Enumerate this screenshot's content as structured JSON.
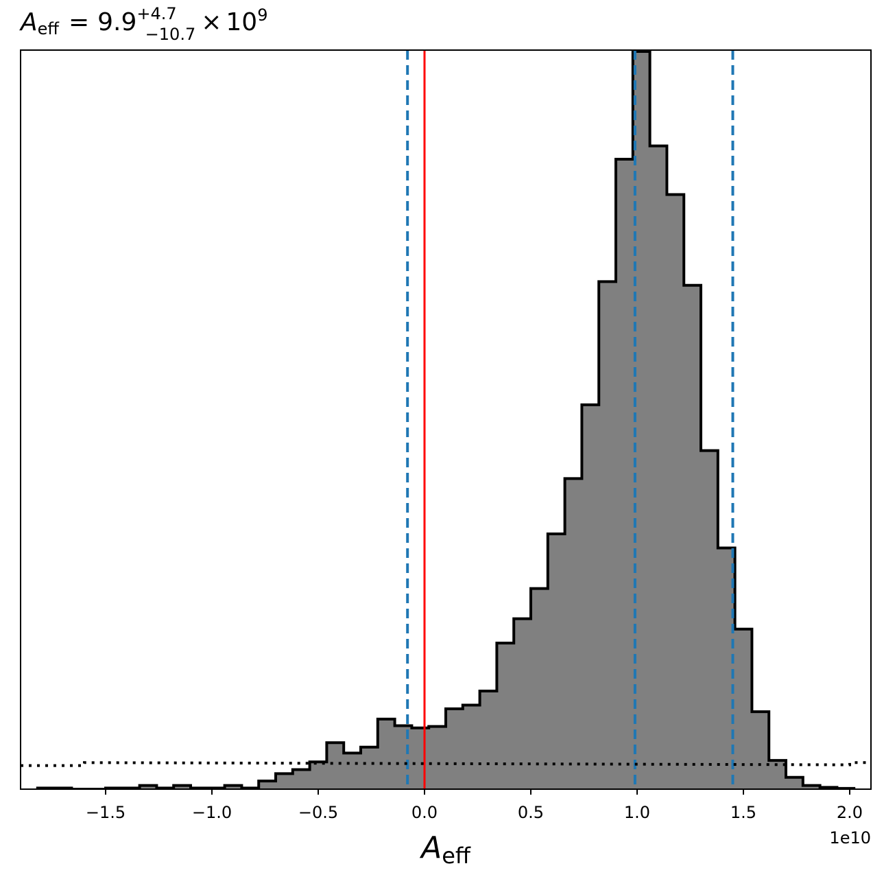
{
  "chart_data": {
    "type": "histogram",
    "title": {
      "symbol": "A",
      "symbol_subscript": "eff",
      "equals": "=",
      "value": "9.9",
      "upper": "+4.7",
      "lower": "−10.7",
      "times": "×",
      "base": "10",
      "exponent": "9"
    },
    "xlabel": {
      "symbol": "A",
      "subscript": "eff"
    },
    "offset_label": "1e10",
    "xlim": [
      -19000000000.0,
      21000000000.0
    ],
    "ylim": [
      0,
      1.0
    ],
    "xticks": [
      -15000000000.0,
      -10000000000.0,
      -5000000000.0,
      0.0,
      5000000000.0,
      10000000000.0,
      15000000000.0,
      20000000000.0
    ],
    "xtick_labels": [
      "−1.5",
      "−1.0",
      "−0.5",
      "0.0",
      "0.5",
      "1.0",
      "1.5",
      "2.0"
    ],
    "yticks_visible": false,
    "bin_edges": [
      -18200000000.0,
      -17400000000.0,
      -16600000000.0,
      -15800000000.0,
      -15000000000.0,
      -14200000000.0,
      -13400000000.0,
      -12600000000.0,
      -11800000000.0,
      -11000000000.0,
      -10200000000.0,
      -9400000000.0,
      -8600000000.0,
      -7800000000.0,
      -7000000000.0,
      -6200000000.0,
      -5400000000.0,
      -4600000000.0,
      -3800000000.0,
      -3000000000.0,
      -2200000000.0,
      -1400000000.0,
      -600000000.0,
      200000000.0,
      1000000000.0,
      1800000000.0,
      2600000000.0,
      3400000000.0,
      4200000000.0,
      5000000000.0,
      5800000000.0,
      6600000000.0,
      7400000000.0,
      8200000000.0,
      9000000000.0,
      9800000000.0,
      10600000000.0,
      11400000000.0,
      12200000000.0,
      13000000000.0,
      13800000000.0,
      14600000000.0,
      15400000000.0,
      16200000000.0,
      17000000000.0,
      17800000000.0,
      18600000000.0,
      19400000000.0,
      20200000000.0
    ],
    "counts": [
      0.0015,
      0.0015,
      0.0,
      0.0,
      0.0015,
      0.0015,
      0.005,
      0.0015,
      0.005,
      0.0015,
      0.0015,
      0.005,
      0.0015,
      0.011,
      0.021,
      0.0265,
      0.037,
      0.063,
      0.049,
      0.057,
      0.095,
      0.086,
      0.083,
      0.085,
      0.109,
      0.114,
      0.133,
      0.198,
      0.231,
      0.272,
      0.346,
      0.421,
      0.521,
      0.688,
      0.854,
      1.0,
      0.872,
      0.806,
      0.683,
      0.459,
      0.327,
      0.217,
      0.105,
      0.039,
      0.016,
      0.005,
      0.0025,
      0.001
    ],
    "hist_fill": "#808080",
    "hist_edge": "#000000",
    "vlines": [
      {
        "x": 0.0,
        "color": "#ff0000",
        "style": "solid"
      },
      {
        "x": -800000000.0,
        "color": "#1f77b4",
        "style": "dashed"
      },
      {
        "x": 9900000000.0,
        "color": "#1f77b4",
        "style": "dashed"
      },
      {
        "x": 14500000000.0,
        "color": "#1f77b4",
        "style": "dashed"
      }
    ],
    "prior_line": {
      "x": [
        -19000000000.0,
        -16000000000.0,
        -16000000000.0,
        20000000000.0,
        20000000000.0,
        21000000000.0
      ],
      "y": [
        0.032,
        0.032,
        0.036,
        0.033,
        0.036,
        0.036
      ],
      "color": "#000000",
      "style": "dotted"
    },
    "grid": false,
    "legend": "none"
  }
}
